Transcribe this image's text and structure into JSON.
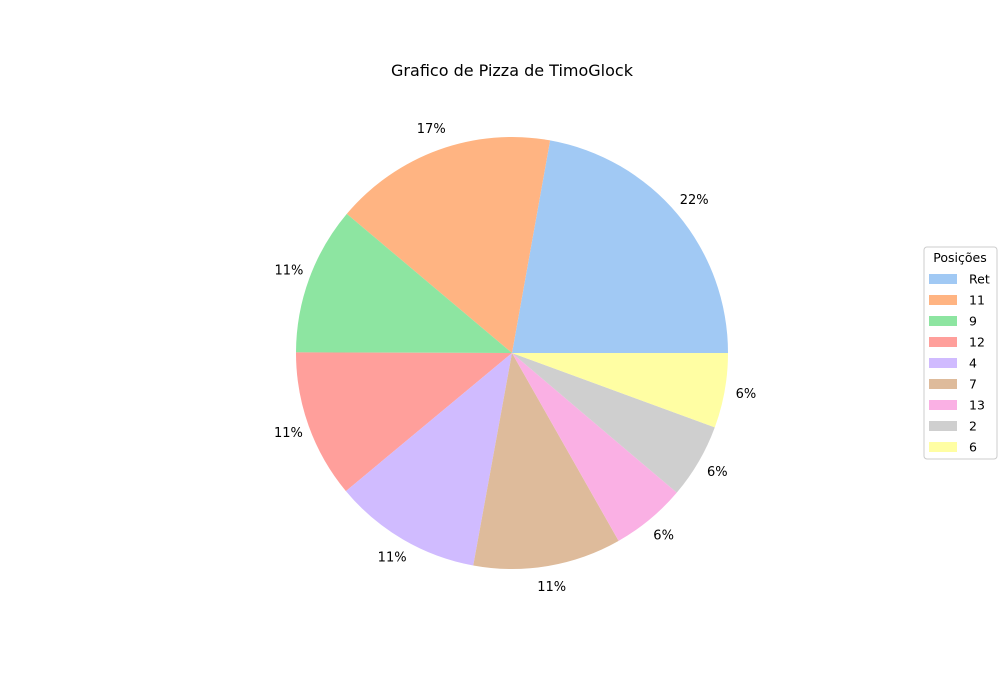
{
  "chart_data": {
    "type": "pie",
    "title": "Grafico de Pizza de TimoGlock",
    "legend_title": "Posições",
    "legend_position": "right",
    "start_angle_deg": 0,
    "direction": "counterclockwise",
    "slices": [
      {
        "label": "Ret",
        "value": 22.2,
        "pct_label": "22%",
        "color": "#a1c9f4"
      },
      {
        "label": "11",
        "value": 16.7,
        "pct_label": "17%",
        "color": "#ffb482"
      },
      {
        "label": "9",
        "value": 11.1,
        "pct_label": "11%",
        "color": "#8de5a1"
      },
      {
        "label": "12",
        "value": 11.1,
        "pct_label": "11%",
        "color": "#ff9f9b"
      },
      {
        "label": "4",
        "value": 11.1,
        "pct_label": "11%",
        "color": "#d0bbff"
      },
      {
        "label": "7",
        "value": 11.1,
        "pct_label": "11%",
        "color": "#debb9b"
      },
      {
        "label": "13",
        "value": 5.6,
        "pct_label": "6%",
        "color": "#fab0e4"
      },
      {
        "label": "2",
        "value": 5.6,
        "pct_label": "6%",
        "color": "#cfcfcf"
      },
      {
        "label": "6",
        "value": 5.6,
        "pct_label": "6%",
        "color": "#fffea3"
      }
    ]
  }
}
